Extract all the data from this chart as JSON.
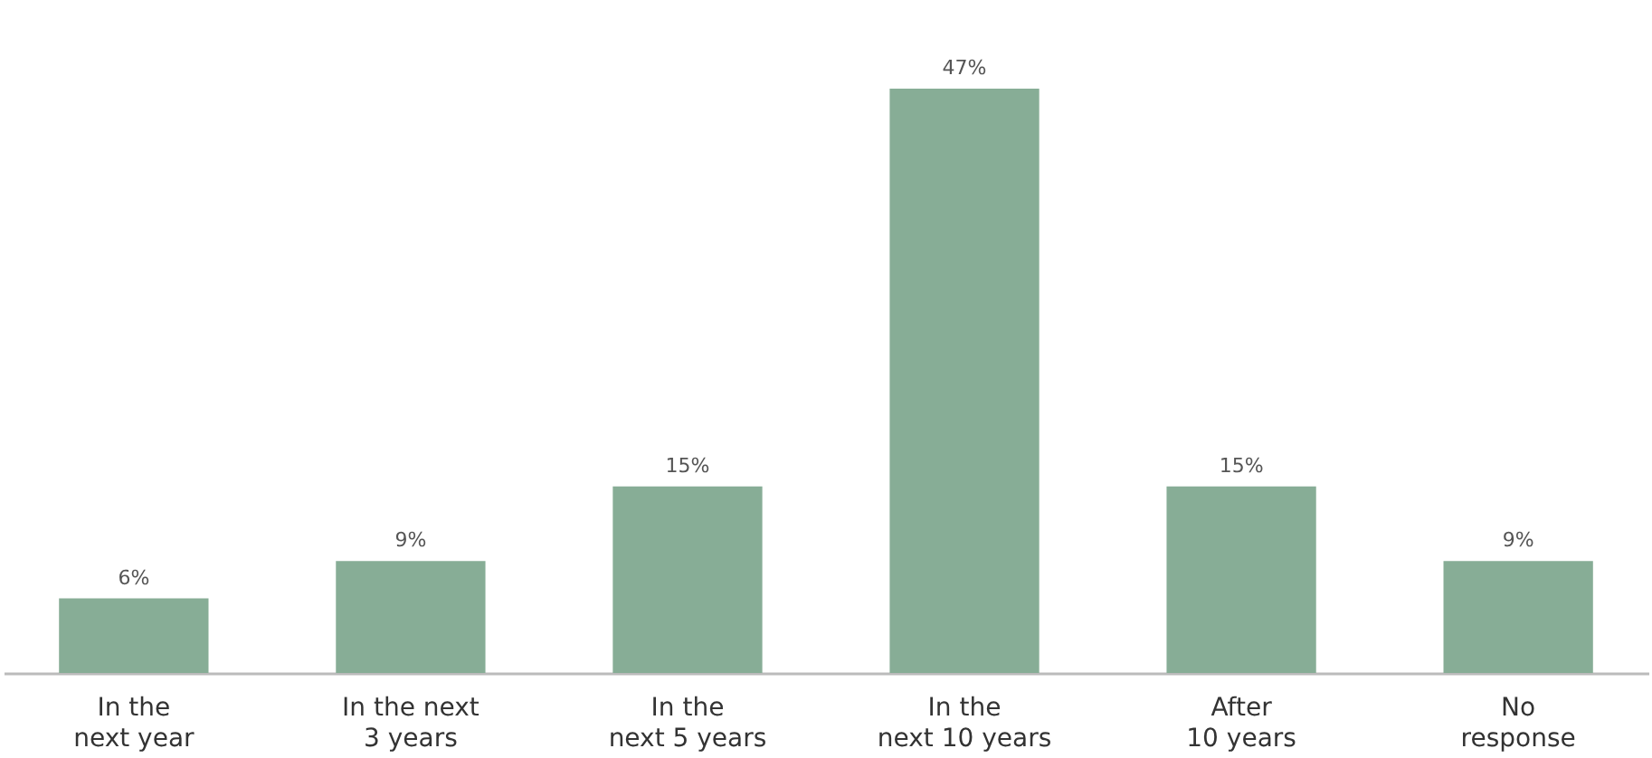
{
  "chart_data": {
    "type": "bar",
    "categories": [
      "In the\nnext year",
      "In the next\n3 years",
      "In the\nnext 5 years",
      "In the\nnext 10 years",
      "After\n10 years",
      "No\nresponse"
    ],
    "values": [
      6,
      9,
      15,
      47,
      15,
      9
    ],
    "value_labels": [
      "6%",
      "9%",
      "15%",
      "47%",
      "15%",
      "9%"
    ],
    "color": "#87ad96"
  }
}
